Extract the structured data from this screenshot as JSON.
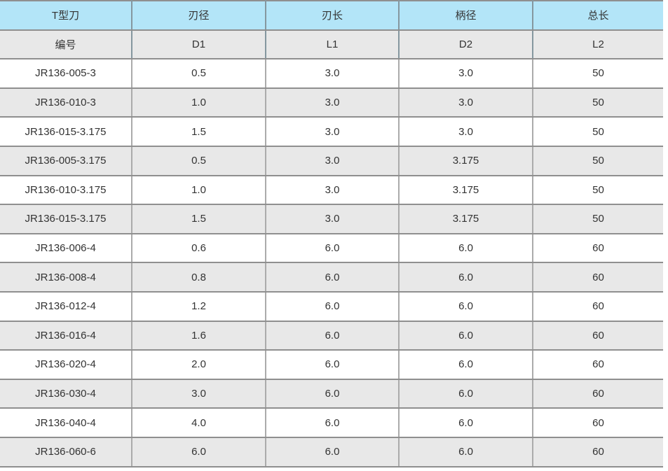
{
  "colors": {
    "header_bg": "#b3e5f8",
    "alt_row_bg": "#e8e8e8",
    "row_bg": "#ffffff",
    "horizontal_border": "#8f8f8f",
    "vertical_border": "#ababab",
    "text": "#333333"
  },
  "table": {
    "columns_cn": [
      "T型刀",
      "刃径",
      "刃长",
      "柄径",
      "总长"
    ],
    "columns_code": [
      "编号",
      "D1",
      "L1",
      "D2",
      "L2"
    ],
    "rows": [
      [
        "JR136-005-3",
        "0.5",
        "3.0",
        "3.0",
        "50"
      ],
      [
        "JR136-010-3",
        "1.0",
        "3.0",
        "3.0",
        "50"
      ],
      [
        "JR136-015-3.175",
        "1.5",
        "3.0",
        "3.0",
        "50"
      ],
      [
        "JR136-005-3.175",
        "0.5",
        "3.0",
        "3.175",
        "50"
      ],
      [
        "JR136-010-3.175",
        "1.0",
        "3.0",
        "3.175",
        "50"
      ],
      [
        "JR136-015-3.175",
        "1.5",
        "3.0",
        "3.175",
        "50"
      ],
      [
        "JR136-006-4",
        "0.6",
        "6.0",
        "6.0",
        "60"
      ],
      [
        "JR136-008-4",
        "0.8",
        "6.0",
        "6.0",
        "60"
      ],
      [
        "JR136-012-4",
        "1.2",
        "6.0",
        "6.0",
        "60"
      ],
      [
        "JR136-016-4",
        "1.6",
        "6.0",
        "6.0",
        "60"
      ],
      [
        "JR136-020-4",
        "2.0",
        "6.0",
        "6.0",
        "60"
      ],
      [
        "JR136-030-4",
        "3.0",
        "6.0",
        "6.0",
        "60"
      ],
      [
        "JR136-040-4",
        "4.0",
        "6.0",
        "6.0",
        "60"
      ],
      [
        "JR136-060-6",
        "6.0",
        "6.0",
        "6.0",
        "60"
      ]
    ]
  }
}
